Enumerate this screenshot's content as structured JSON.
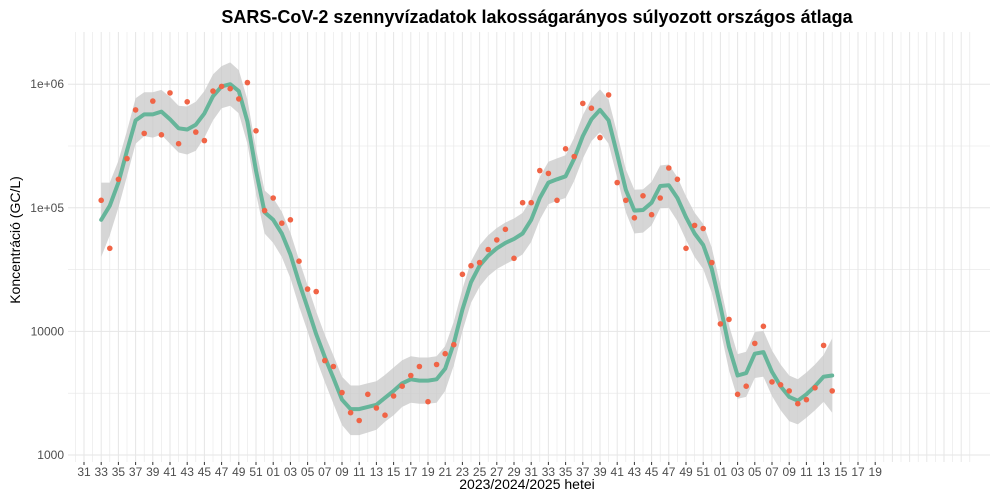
{
  "chart_data": {
    "type": "scatter",
    "title": "SARS-CoV-2 szennyvízadatok lakosságarányos súlyozott országos átlaga",
    "xlabel": "2023/2024/2025 hetei",
    "ylabel": "Koncentráció (GC/L)",
    "y_scale": "log10",
    "ylim": [
      1000,
      2000000
    ],
    "y_tick_labels": [
      "1000",
      "10000",
      "1e+05",
      "1e+06"
    ],
    "y_tick_values": [
      1000,
      10000,
      100000,
      1000000
    ],
    "x_tick_labels": [
      "31",
      "33",
      "35",
      "37",
      "39",
      "41",
      "43",
      "45",
      "47",
      "49",
      "51",
      "01",
      "03",
      "05",
      "07",
      "09",
      "11",
      "13",
      "15",
      "17",
      "19",
      "21",
      "23",
      "25",
      "27",
      "29",
      "31",
      "33",
      "35",
      "37",
      "39",
      "41",
      "43",
      "45",
      "47",
      "49",
      "51",
      "01",
      "03",
      "05",
      "07",
      "09",
      "11",
      "13",
      "15",
      "17",
      "19"
    ],
    "grid": true,
    "legend": "none",
    "colors": {
      "points": "#f06446",
      "smooth": "#66b59a",
      "band": "#c8c8c8",
      "grid": "#e6e6e6"
    },
    "series": [
      {
        "values": [
          115000,
          47000,
          170000,
          250000,
          620000,
          400000,
          730000,
          390000,
          850000,
          330000,
          720000,
          410000,
          350000,
          880000,
          960000,
          920000,
          760000,
          1030000,
          420000,
          95000,
          120000,
          75000,
          80000,
          37000,
          22000,
          21000,
          5800,
          5200,
          3200,
          2200,
          1900,
          3100,
          2400,
          2100,
          3000,
          3600,
          4400,
          5200,
          2700,
          5400,
          6600,
          7800,
          29000,
          34000,
          36000,
          46000,
          55000,
          67000,
          39000,
          110000,
          110000,
          200000,
          190000,
          115000,
          300000,
          260000,
          700000,
          640000,
          370000,
          820000,
          160000,
          115000,
          83000,
          125000,
          88000,
          120000,
          210000,
          170000,
          47000,
          72000,
          68000,
          36000,
          11500,
          12500,
          3100,
          3600,
          8000,
          11000,
          3900,
          3700,
          3300,
          2600,
          2800,
          3500,
          7700,
          3300
        ]
      },
      {
        "values": [
          80000,
          104000,
          160000,
          290000,
          510000,
          570000,
          570000,
          600000,
          520000,
          440000,
          430000,
          470000,
          580000,
          800000,
          960000,
          1000000,
          880000,
          500000,
          200000,
          92000,
          80000,
          62000,
          42000,
          25000,
          15500,
          9500,
          6200,
          4200,
          2800,
          2350,
          2350,
          2450,
          2550,
          2900,
          3300,
          3800,
          4100,
          4000,
          4000,
          4100,
          5000,
          8000,
          15000,
          25000,
          34000,
          41000,
          47000,
          52000,
          56000,
          62000,
          80000,
          120000,
          160000,
          170000,
          180000,
          250000,
          380000,
          520000,
          620000,
          510000,
          270000,
          140000,
          95000,
          96000,
          110000,
          150000,
          152000,
          120000,
          84000,
          62000,
          50000,
          32000,
          16000,
          7500,
          4400,
          4600,
          6600,
          6800,
          4700,
          3600,
          2950,
          2750,
          3100,
          3600,
          4300,
          4400
        ],
        "band_low": [
          40000,
          60000,
          100000,
          180000,
          330000,
          380000,
          370000,
          390000,
          330000,
          280000,
          270000,
          290000,
          370000,
          510000,
          640000,
          670000,
          580000,
          330000,
          130000,
          62000,
          52000,
          40000,
          27000,
          16000,
          10000,
          6000,
          3900,
          2600,
          1750,
          1450,
          1450,
          1520,
          1600,
          1860,
          2100,
          2450,
          2650,
          2600,
          2600,
          2650,
          3300,
          5300,
          10000,
          17000,
          23000,
          28000,
          32000,
          35000,
          38000,
          42000,
          53000,
          80000,
          107000,
          114000,
          120000,
          165000,
          250000,
          345000,
          410000,
          330000,
          175000,
          92000,
          62000,
          63000,
          72000,
          99000,
          100000,
          78000,
          55000,
          40000,
          32000,
          20500,
          10300,
          4850,
          2850,
          2950,
          4200,
          4300,
          3000,
          2300,
          1880,
          1770,
          2000,
          2300,
          2700,
          2200
        ],
        "band_high": [
          160000,
          160000,
          240000,
          420000,
          770000,
          860000,
          860000,
          900000,
          790000,
          670000,
          660000,
          720000,
          880000,
          1200000,
          1400000,
          1500000,
          1300000,
          750000,
          300000,
          138000,
          120000,
          93000,
          63000,
          38000,
          23500,
          14500,
          9400,
          6400,
          4300,
          3650,
          3650,
          3800,
          3950,
          4450,
          5100,
          5850,
          6300,
          6150,
          6150,
          6300,
          7600,
          12000,
          22000,
          36800,
          49700,
          60000,
          68700,
          76000,
          82000,
          91000,
          118000,
          178000,
          236000,
          251000,
          266000,
          370000,
          560000,
          765000,
          910000,
          750000,
          400000,
          205000,
          140000,
          141000,
          162000,
          220000,
          224000,
          177000,
          124000,
          91500,
          74000,
          47500,
          23600,
          11200,
          6550,
          6850,
          9850,
          10100,
          7000,
          5400,
          4400,
          4100,
          4650,
          5400,
          6450,
          8800
        ]
      }
    ]
  }
}
